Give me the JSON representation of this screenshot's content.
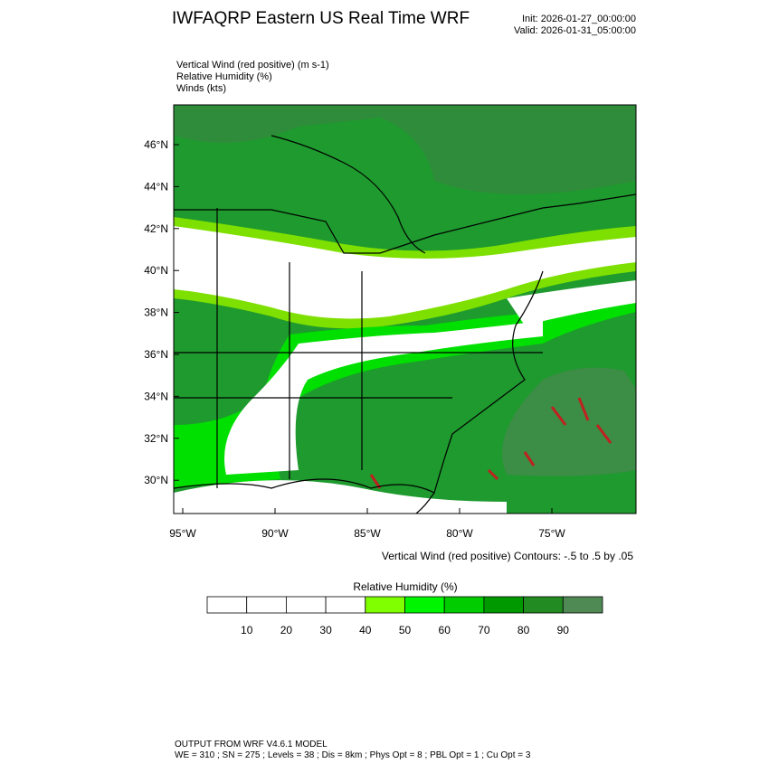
{
  "header": {
    "title": "IWFAQRP Eastern US Real Time WRF",
    "init": "Init: 2026-01-27_00:00:00",
    "valid": "Valid: 2026-01-31_05:00:00"
  },
  "fields": [
    "Vertical Wind (red positive)   (m s-1)",
    "Relative Humidity   (%)",
    "Winds   (kts)"
  ],
  "map": {
    "lat_labels": [
      "46°N",
      "44°N",
      "42°N",
      "40°N",
      "38°N",
      "36°N",
      "34°N",
      "32°N",
      "30°N"
    ],
    "lon_labels": [
      "95°W",
      "90°W",
      "85°W",
      "80°W",
      "75°W"
    ]
  },
  "contour_note": "Vertical Wind (red positive) Contours: -.5 to .5 by .05",
  "colorbar": {
    "title": "Relative Humidity   (%)",
    "labels": [
      10,
      20,
      30,
      40,
      50,
      60,
      70,
      80,
      90
    ],
    "colors": [
      "#ffffff",
      "#ffffff",
      "#ffffff",
      "#ffffff",
      "#80ff00",
      "#00f500",
      "#00cc00",
      "#009900",
      "#228b22",
      "#4f8a55"
    ]
  },
  "footer": [
    "OUTPUT FROM WRF V4.6.1 MODEL",
    "WE = 310 ; SN = 275 ; Levels = 38 ; Dis = 8km ; Phys Opt = 8 ; PBL Opt = 1 ; Cu Opt = 3"
  ]
}
